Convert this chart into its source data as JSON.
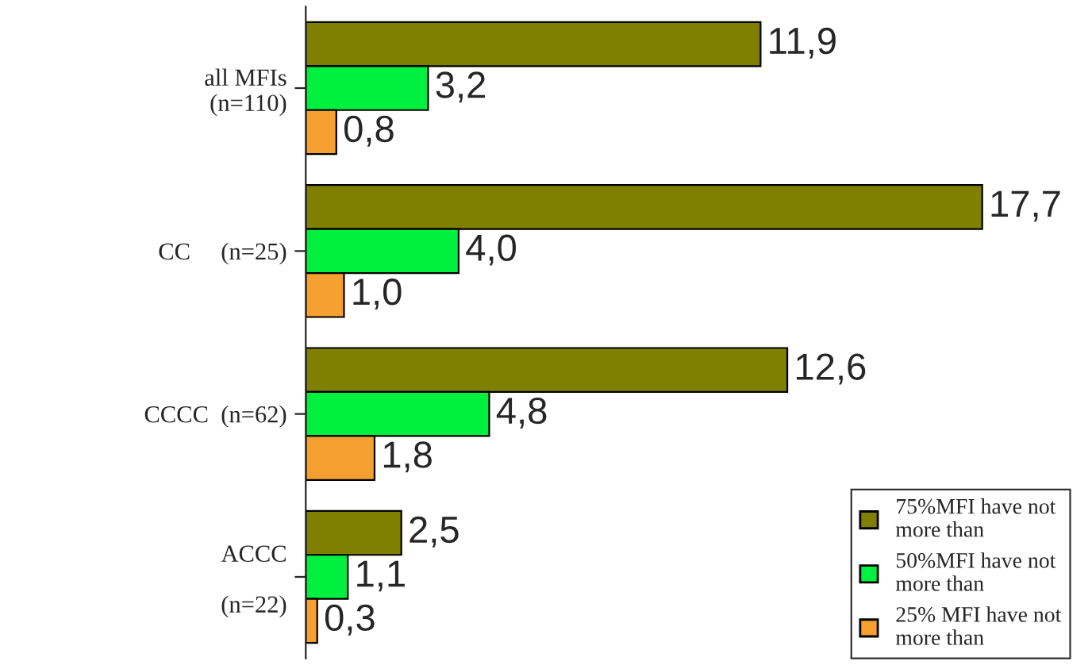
{
  "chart_data": {
    "type": "bar",
    "orientation": "horizontal",
    "categories": [
      "all MFIs\n(n=110)",
      "CC     (n=25)",
      "CCCC  (n=62)",
      "ACCC\n\n       (n=22)"
    ],
    "series": [
      {
        "name": "75%MFI have not more than",
        "color": "#808000",
        "values": [
          11.9,
          17.7,
          12.6,
          2.5
        ],
        "value_labels": [
          "11,9",
          "17,7",
          "12,6",
          "2,5"
        ]
      },
      {
        "name": "50%MFI have not more than",
        "color": "#00f040",
        "values": [
          3.2,
          4.0,
          4.8,
          1.1
        ],
        "value_labels": [
          "3,2",
          "4,0",
          "4,8",
          "1,1"
        ]
      },
      {
        "name": "25% MFI have not more than",
        "color": "#f5a030",
        "values": [
          0.8,
          1.0,
          1.8,
          0.3
        ],
        "value_labels": [
          "0,8",
          "1,0",
          "1,8",
          "0,3"
        ]
      }
    ],
    "legend": "bottom right",
    "grid": false
  }
}
